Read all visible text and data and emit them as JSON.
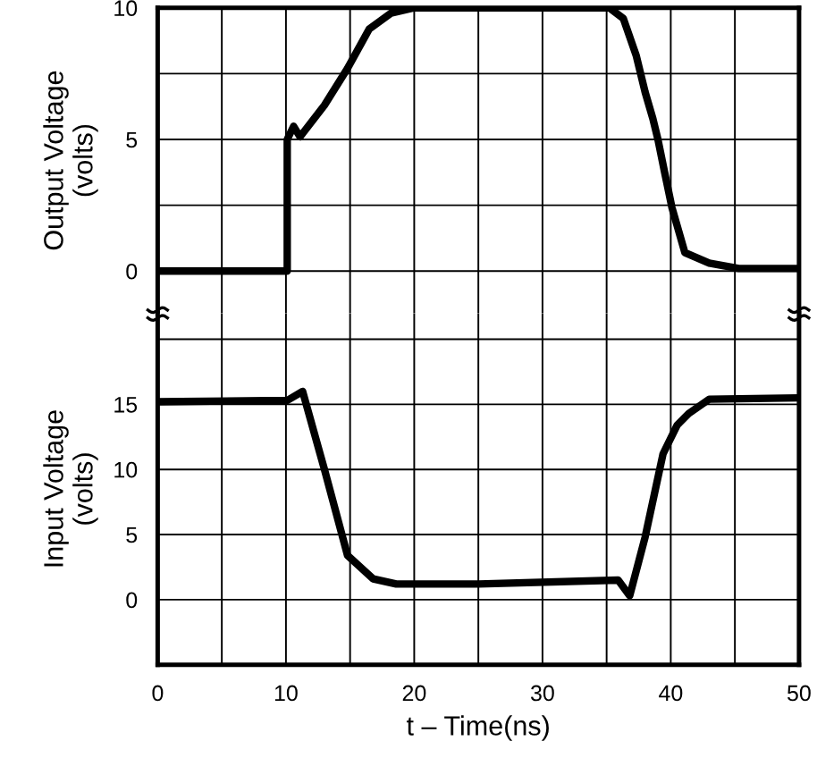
{
  "chart_data": [
    {
      "type": "line",
      "ylabel": "Output Voltage\n(volts)",
      "tick_labels": "y",
      "grid": true,
      "xlim": [
        0,
        50
      ],
      "xticks": [
        0,
        {
          "value": 5,
          "label": null
        },
        10,
        {
          "value": 15,
          "label": null
        },
        20,
        {
          "value": 25,
          "label": null
        },
        30,
        {
          "value": 35,
          "label": null
        },
        40,
        {
          "value": 45,
          "label": null
        },
        50
      ],
      "ylim": [
        -1.6,
        10
      ],
      "yticks": [
        0,
        {
          "value": 2.5,
          "label": null
        },
        5,
        {
          "value": 7.5,
          "label": null
        },
        10
      ],
      "series": [
        {
          "color": "#000000",
          "x": [
            0,
            10.1,
            10.1,
            10.6,
            11.1,
            13,
            14.8,
            16.5,
            18.2,
            20,
            35.2,
            36.3,
            37.3,
            38,
            38.6,
            39.0,
            39.5,
            40.1,
            41.1,
            43,
            45.3,
            50
          ],
          "values": [
            0,
            0,
            5.0,
            5.5,
            5.1,
            6.3,
            7.7,
            9.2,
            9.8,
            10,
            10,
            9.6,
            8.2,
            6.8,
            5.8,
            5.0,
            3.8,
            2.4,
            0.7,
            0.3,
            0.1,
            0.1
          ]
        }
      ]
    },
    {
      "type": "line",
      "xlabel": "t – Time(ns)",
      "ylabel": "Input Voltage\n(volts)",
      "grid": true,
      "xlim": [
        0,
        50
      ],
      "xticks": [
        0,
        {
          "value": 5,
          "label": null
        },
        10,
        {
          "value": 15,
          "label": null
        },
        20,
        {
          "value": 25,
          "label": null
        },
        30,
        {
          "value": 35,
          "label": null
        },
        40,
        {
          "value": 45,
          "label": null
        },
        50
      ],
      "ylim": [
        -5,
        22
      ],
      "yticks": [
        {
          "value": -5,
          "label": null
        },
        0,
        5,
        10,
        15,
        {
          "value": 20,
          "label": null
        }
      ],
      "series": [
        {
          "color": "#000000",
          "x": [
            0,
            10.1,
            11.3,
            13,
            14.8,
            16.8,
            18.6,
            25,
            35.9,
            36.8,
            38,
            39.4,
            40.5,
            41.4,
            43,
            50
          ],
          "values": [
            15.2,
            15.3,
            16,
            10,
            3.4,
            1.6,
            1.2,
            1.2,
            1.5,
            0.3,
            4.8,
            11.2,
            13.4,
            14.3,
            15.4,
            15.5
          ]
        }
      ]
    }
  ]
}
